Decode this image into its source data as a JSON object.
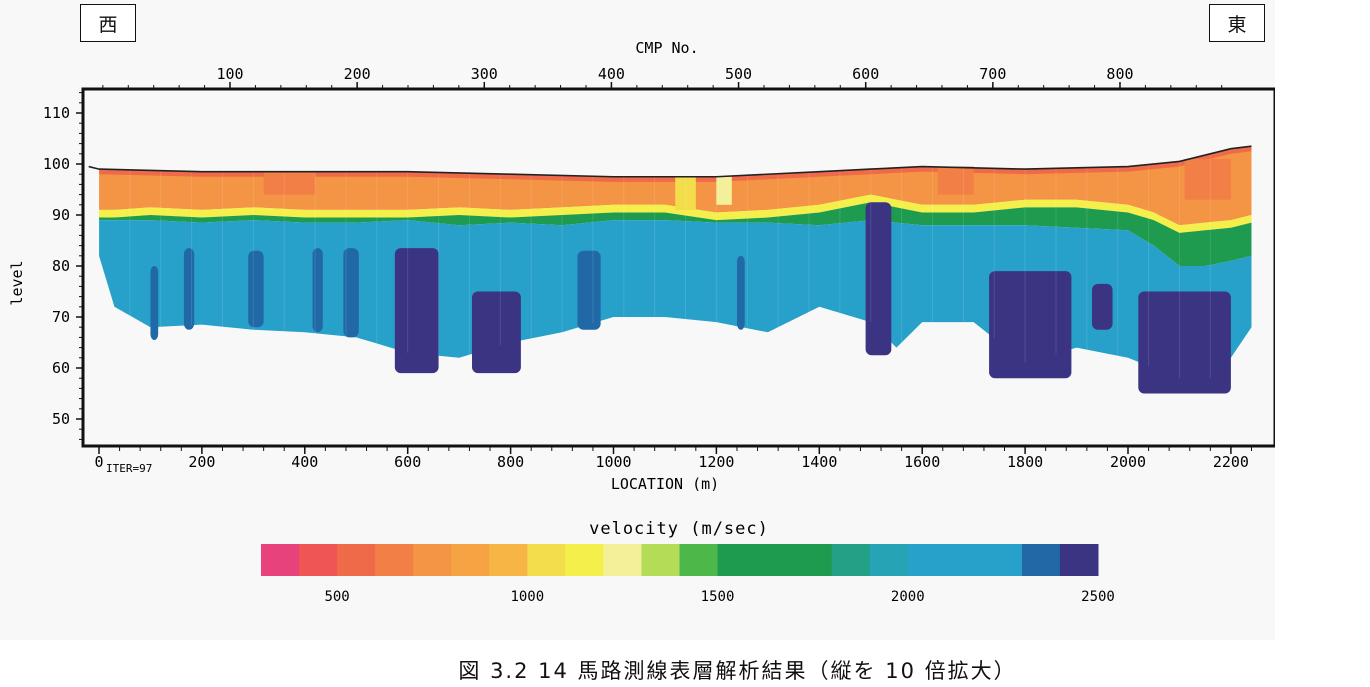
{
  "direction": {
    "west": "西",
    "east": "東"
  },
  "caption": "図 3.2 14 馬路測線表層解析結果（縦を 10 倍拡大）",
  "chart_data": {
    "type": "heatmap",
    "top_axis": {
      "title": "CMP No.",
      "ticks": [
        100,
        200,
        300,
        400,
        500,
        600,
        700,
        800
      ]
    },
    "xlabel": "LOCATION (m)",
    "ylabel": "level",
    "x_ticks": [
      0,
      200,
      400,
      600,
      800,
      1000,
      1200,
      1400,
      1600,
      1800,
      2000,
      2200
    ],
    "y_ticks": [
      50,
      60,
      70,
      80,
      90,
      100,
      110
    ],
    "xlim": [
      -30,
      2270
    ],
    "ylim": [
      45,
      115
    ],
    "annotation": "ITER=97",
    "colorbar": {
      "title": "velocity (m/sec)",
      "range": [
        300,
        2500
      ],
      "ticks": [
        500,
        1000,
        1500,
        2000,
        2500
      ],
      "bands": [
        {
          "from": 300,
          "to": 400,
          "color": "#e8427c"
        },
        {
          "from": 400,
          "to": 500,
          "color": "#f05555"
        },
        {
          "from": 500,
          "to": 600,
          "color": "#ef6a48"
        },
        {
          "from": 600,
          "to": 700,
          "color": "#f27f45"
        },
        {
          "from": 700,
          "to": 800,
          "color": "#f49445"
        },
        {
          "from": 800,
          "to": 900,
          "color": "#f5a343"
        },
        {
          "from": 900,
          "to": 1000,
          "color": "#f6b545"
        },
        {
          "from": 1000,
          "to": 1100,
          "color": "#f3dd4a"
        },
        {
          "from": 1100,
          "to": 1200,
          "color": "#f4ef4a"
        },
        {
          "from": 1200,
          "to": 1300,
          "color": "#f4f09a"
        },
        {
          "from": 1300,
          "to": 1400,
          "color": "#b4dc56"
        },
        {
          "from": 1400,
          "to": 1500,
          "color": "#4db849"
        },
        {
          "from": 1500,
          "to": 1800,
          "color": "#1f9b4f"
        },
        {
          "from": 1800,
          "to": 1900,
          "color": "#23a086"
        },
        {
          "from": 1900,
          "to": 2000,
          "color": "#26a4b6"
        },
        {
          "from": 2000,
          "to": 2300,
          "color": "#27a1c9"
        },
        {
          "from": 2300,
          "to": 2400,
          "color": "#2069a6"
        },
        {
          "from": 2400,
          "to": 2500,
          "color": "#3a3482"
        }
      ]
    },
    "surface": {
      "x": [
        -20,
        0,
        200,
        400,
        600,
        800,
        1000,
        1200,
        1400,
        1500,
        1600,
        1800,
        2000,
        2100,
        2200,
        2240
      ],
      "y": [
        99.5,
        99,
        98.5,
        98.5,
        98.5,
        98,
        97.5,
        97.5,
        98.5,
        99,
        99.5,
        99,
        99.5,
        100.5,
        103,
        103.5
      ]
    },
    "layers": {
      "x": [
        0,
        30,
        100,
        200,
        300,
        400,
        500,
        600,
        700,
        800,
        900,
        1000,
        1100,
        1200,
        1300,
        1400,
        1500,
        1550,
        1600,
        1700,
        1800,
        1900,
        2000,
        2050,
        2100,
        2150,
        2200,
        2240
      ],
      "yellow_base": [
        91,
        91,
        91.5,
        91,
        91.5,
        91,
        91,
        91,
        91.5,
        91,
        91.5,
        92,
        92,
        90.5,
        91,
        92,
        94,
        93,
        92,
        92,
        93,
        93,
        92,
        90.5,
        88,
        88.5,
        89,
        90
      ],
      "green_base": [
        89,
        89,
        89,
        88.5,
        89,
        88.5,
        88.5,
        89,
        88,
        88.5,
        88,
        89,
        89,
        88.5,
        88.5,
        88,
        89,
        88.5,
        88,
        88,
        88,
        87.5,
        87,
        84,
        80,
        80,
        81,
        82
      ],
      "cyan_base": [
        82,
        72,
        68,
        68.5,
        67.5,
        67,
        66,
        63,
        62,
        65,
        67,
        70,
        70,
        69,
        67,
        72,
        69,
        64,
        69,
        69,
        61,
        64,
        62,
        60,
        58,
        57,
        62,
        68
      ],
      "bottom_blue_base": [
        79,
        72,
        68,
        68,
        67,
        66.5,
        65.5,
        59,
        58.5,
        62,
        67,
        70,
        70,
        69,
        67,
        72,
        65,
        62,
        68,
        67,
        58,
        60,
        60,
        56,
        55,
        58,
        61,
        68
      ]
    },
    "dark_bodies": [
      {
        "x0": 100,
        "x1": 115,
        "top": 80,
        "bottom": 65.5,
        "color": "#2069a6"
      },
      {
        "x0": 165,
        "x1": 185,
        "top": 83.5,
        "bottom": 67.5,
        "color": "#2069a6"
      },
      {
        "x0": 290,
        "x1": 320,
        "top": 83,
        "bottom": 68,
        "color": "#2069a6"
      },
      {
        "x0": 415,
        "x1": 435,
        "top": 83.5,
        "bottom": 67,
        "color": "#2069a6"
      },
      {
        "x0": 475,
        "x1": 505,
        "top": 83.5,
        "bottom": 66,
        "color": "#2069a6"
      },
      {
        "x0": 575,
        "x1": 660,
        "top": 83.5,
        "bottom": 59,
        "color": "#3a3482"
      },
      {
        "x0": 725,
        "x1": 820,
        "top": 75,
        "bottom": 59,
        "color": "#3a3482"
      },
      {
        "x0": 930,
        "x1": 975,
        "top": 83,
        "bottom": 67.5,
        "color": "#2069a6"
      },
      {
        "x0": 1240,
        "x1": 1255,
        "top": 82,
        "bottom": 67.5,
        "color": "#2069a6"
      },
      {
        "x0": 1490,
        "x1": 1540,
        "top": 92.5,
        "bottom": 62.5,
        "color": "#3a3482"
      },
      {
        "x0": 1730,
        "x1": 1890,
        "top": 79,
        "bottom": 58,
        "color": "#3a3482"
      },
      {
        "x0": 1930,
        "x1": 1970,
        "top": 76.5,
        "bottom": 67.5,
        "color": "#3a3482"
      },
      {
        "x0": 2020,
        "x1": 2200,
        "top": 75,
        "bottom": 55,
        "color": "#3a3482"
      }
    ],
    "orange_patches": [
      {
        "x0": 1200,
        "x1": 1230,
        "top": 97.5,
        "bottom": 92,
        "color": "#f4f09a"
      },
      {
        "x0": 1120,
        "x1": 1160,
        "top": 97.5,
        "bottom": 91,
        "color": "#f3dd4a"
      },
      {
        "x0": 2110,
        "x1": 2200,
        "top": 101,
        "bottom": 93,
        "color": "#f27f45"
      },
      {
        "x0": 1630,
        "x1": 1700,
        "top": 99.5,
        "bottom": 94,
        "color": "#f27f45"
      },
      {
        "x0": 320,
        "x1": 420,
        "top": 98.5,
        "bottom": 94,
        "color": "#f27f45"
      }
    ]
  }
}
